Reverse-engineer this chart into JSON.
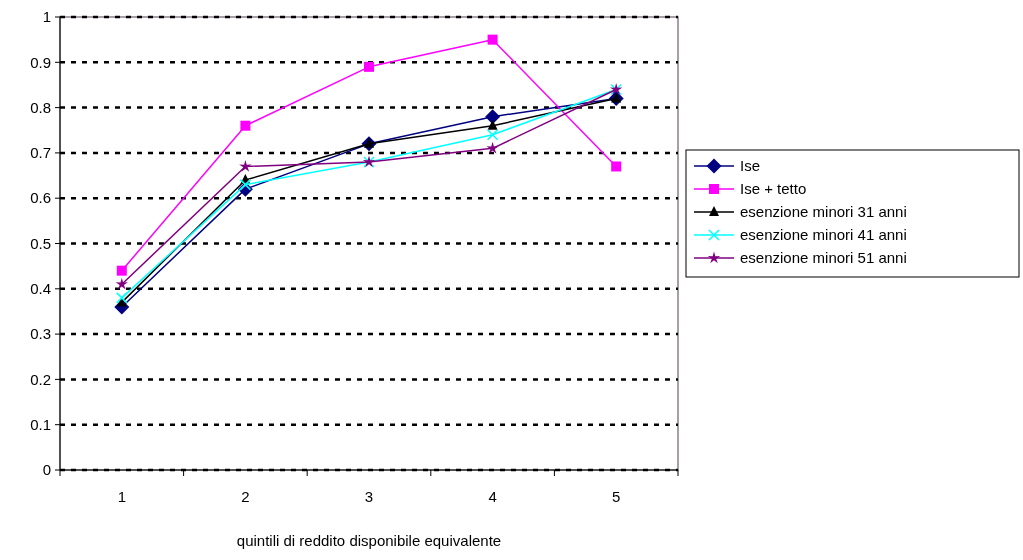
{
  "chart_data": {
    "type": "line",
    "xlabel": "quintili di reddito disponibile equivalente",
    "categories": [
      "1",
      "2",
      "3",
      "4",
      "5"
    ],
    "ylim": [
      0,
      1
    ],
    "yticks": [
      0,
      0.1,
      0.2,
      0.3,
      0.4,
      0.5,
      0.6,
      0.7,
      0.8,
      0.9,
      1
    ],
    "grid": "y",
    "legend": "right",
    "series": [
      {
        "name": "Ise",
        "color": "#000080",
        "marker": "diamond",
        "values": [
          0.36,
          0.62,
          0.72,
          0.78,
          0.82
        ]
      },
      {
        "name": "Ise + tetto",
        "color": "#ff00ff",
        "marker": "square",
        "values": [
          0.44,
          0.76,
          0.89,
          0.95,
          0.67
        ]
      },
      {
        "name": "esenzione minori 31 anni",
        "color": "#000000",
        "marker": "triangle",
        "values": [
          0.37,
          0.64,
          0.72,
          0.76,
          0.82
        ]
      },
      {
        "name": "esenzione minori 41 anni",
        "color": "#00ffff",
        "marker": "cross",
        "values": [
          0.38,
          0.63,
          0.68,
          0.74,
          0.84
        ]
      },
      {
        "name": "esenzione minori 51 anni",
        "color": "#800080",
        "marker": "star",
        "values": [
          0.41,
          0.67,
          0.68,
          0.71,
          0.84
        ]
      }
    ]
  }
}
